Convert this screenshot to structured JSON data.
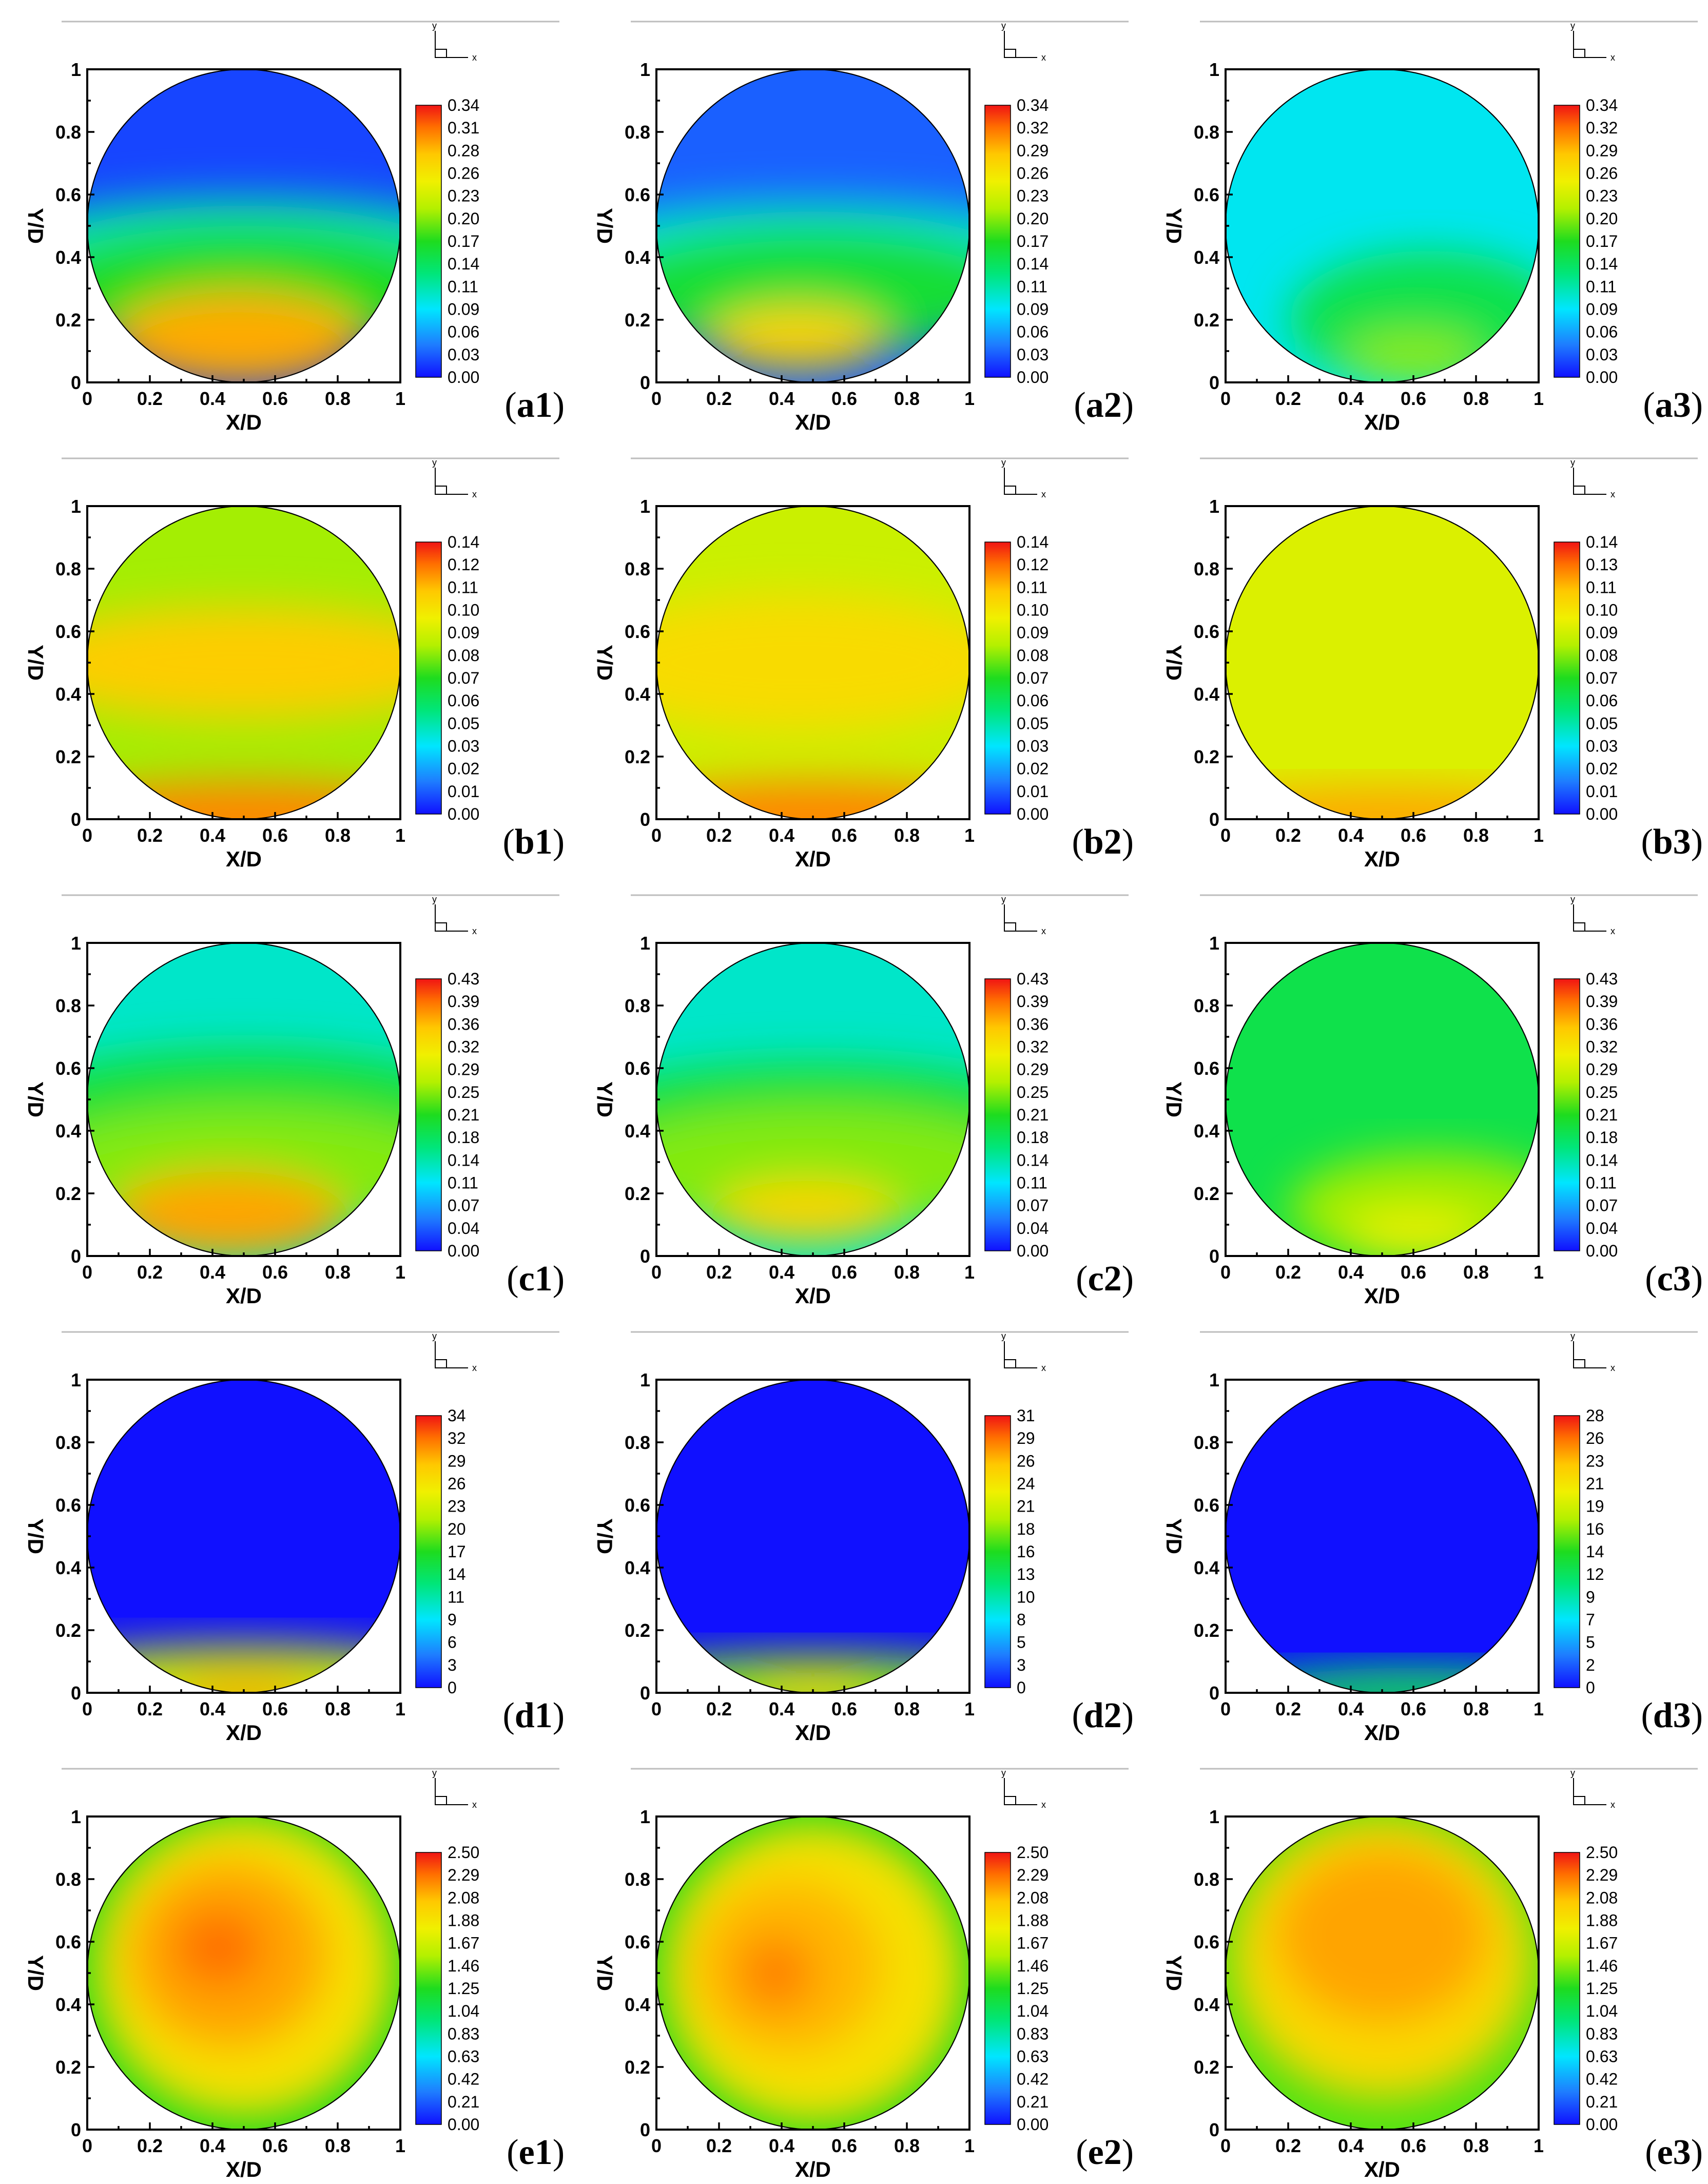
{
  "chart_data": [
    {
      "id": "a1",
      "type": "heatmap",
      "label": "a1",
      "xlabel": "X/D",
      "ylabel": "Y/D",
      "xlim": [
        0,
        1
      ],
      "ylim": [
        0,
        1
      ],
      "x_ticks": [
        "0",
        "0.2",
        "0.4",
        "0.6",
        "0.8",
        "1"
      ],
      "y_ticks": [
        "0",
        "0.2",
        "0.4",
        "0.6",
        "0.8",
        "1"
      ],
      "colorbar_levels": [
        "0.34",
        "0.31",
        "0.28",
        "0.26",
        "0.23",
        "0.20",
        "0.17",
        "0.14",
        "0.11",
        "0.09",
        "0.06",
        "0.03",
        "0.00"
      ],
      "colorbar_range": [
        0,
        0.34
      ],
      "background_level": 0.02,
      "blobs": [
        {
          "x": 0.5,
          "y": 0.46,
          "rx": 0.75,
          "ry": 0.13,
          "level": 0.11
        },
        {
          "x": 0.5,
          "y": 0.3,
          "rx": 0.7,
          "ry": 0.2,
          "level": 0.17
        },
        {
          "x": 0.48,
          "y": 0.14,
          "rx": 0.4,
          "ry": 0.15,
          "level": 0.29
        }
      ]
    },
    {
      "id": "a2",
      "type": "heatmap",
      "label": "a2",
      "xlabel": "X/D",
      "ylabel": "Y/D",
      "xlim": [
        0,
        1
      ],
      "ylim": [
        0,
        1
      ],
      "x_ticks": [
        "0",
        "0.2",
        "0.4",
        "0.6",
        "0.8",
        "1"
      ],
      "y_ticks": [
        "0",
        "0.2",
        "0.4",
        "0.6",
        "0.8",
        "1"
      ],
      "colorbar_levels": [
        "0.34",
        "0.32",
        "0.29",
        "0.26",
        "0.23",
        "0.20",
        "0.17",
        "0.14",
        "0.11",
        "0.09",
        "0.06",
        "0.03",
        "0.00"
      ],
      "colorbar_range": [
        0,
        0.34
      ],
      "background_level": 0.03,
      "blobs": [
        {
          "x": 0.5,
          "y": 0.46,
          "rx": 0.75,
          "ry": 0.12,
          "level": 0.1
        },
        {
          "x": 0.5,
          "y": 0.3,
          "rx": 0.7,
          "ry": 0.2,
          "level": 0.16
        },
        {
          "x": 0.45,
          "y": 0.14,
          "rx": 0.28,
          "ry": 0.1,
          "level": 0.27
        }
      ]
    },
    {
      "id": "a3",
      "type": "heatmap",
      "label": "a3",
      "xlabel": "X/D",
      "ylabel": "Y/D",
      "xlim": [
        0,
        1
      ],
      "ylim": [
        0,
        1
      ],
      "x_ticks": [
        "0",
        "0.2",
        "0.4",
        "0.6",
        "0.8",
        "1"
      ],
      "y_ticks": [
        "0",
        "0.2",
        "0.4",
        "0.6",
        "0.8",
        "1"
      ],
      "colorbar_levels": [
        "0.34",
        "0.32",
        "0.29",
        "0.26",
        "0.23",
        "0.20",
        "0.17",
        "0.14",
        "0.11",
        "0.09",
        "0.06",
        "0.03",
        "0.00"
      ],
      "colorbar_range": [
        0,
        0.34
      ],
      "background_level": 0.09,
      "blobs": [
        {
          "x": 0.65,
          "y": 0.2,
          "rx": 0.45,
          "ry": 0.22,
          "level": 0.15
        },
        {
          "x": 0.6,
          "y": 0.08,
          "rx": 0.22,
          "ry": 0.08,
          "level": 0.2
        }
      ]
    },
    {
      "id": "b1",
      "type": "heatmap",
      "label": "b1",
      "xlabel": "X/D",
      "ylabel": "Y/D",
      "xlim": [
        0,
        1
      ],
      "ylim": [
        0,
        1
      ],
      "x_ticks": [
        "0",
        "0.2",
        "0.4",
        "0.6",
        "0.8",
        "1"
      ],
      "y_ticks": [
        "0",
        "0.2",
        "0.4",
        "0.6",
        "0.8",
        "1"
      ],
      "colorbar_levels": [
        "0.14",
        "0.12",
        "0.11",
        "0.10",
        "0.09",
        "0.08",
        "0.07",
        "0.06",
        "0.05",
        "0.03",
        "0.02",
        "0.01",
        "0.00"
      ],
      "colorbar_range": [
        0,
        0.14
      ],
      "background_level": 0.085,
      "blobs": [
        {
          "x": 0.5,
          "y": 0.5,
          "rx": 0.75,
          "ry": 0.18,
          "level": 0.113
        },
        {
          "x": 0.5,
          "y": 0.0,
          "rx": 0.7,
          "ry": 0.12,
          "level": 0.125
        }
      ]
    },
    {
      "id": "b2",
      "type": "heatmap",
      "label": "b2",
      "xlabel": "X/D",
      "ylabel": "Y/D",
      "xlim": [
        0,
        1
      ],
      "ylim": [
        0,
        1
      ],
      "x_ticks": [
        "0",
        "0.2",
        "0.4",
        "0.6",
        "0.8",
        "1"
      ],
      "y_ticks": [
        "0",
        "0.2",
        "0.4",
        "0.6",
        "0.8",
        "1"
      ],
      "colorbar_levels": [
        "0.14",
        "0.12",
        "0.11",
        "0.10",
        "0.09",
        "0.08",
        "0.07",
        "0.06",
        "0.05",
        "0.03",
        "0.02",
        "0.01",
        "0.00"
      ],
      "colorbar_range": [
        0,
        0.14
      ],
      "background_level": 0.092,
      "blobs": [
        {
          "x": 0.45,
          "y": 0.5,
          "rx": 0.7,
          "ry": 0.22,
          "level": 0.108
        },
        {
          "x": 0.5,
          "y": 0.0,
          "rx": 0.7,
          "ry": 0.12,
          "level": 0.125
        }
      ]
    },
    {
      "id": "b3",
      "type": "heatmap",
      "label": "b3",
      "xlabel": "X/D",
      "ylabel": "Y/D",
      "xlim": [
        0,
        1
      ],
      "ylim": [
        0,
        1
      ],
      "x_ticks": [
        "0",
        "0.2",
        "0.4",
        "0.6",
        "0.8",
        "1"
      ],
      "y_ticks": [
        "0",
        "0.2",
        "0.4",
        "0.6",
        "0.8",
        "1"
      ],
      "colorbar_levels": [
        "0.14",
        "0.13",
        "0.11",
        "0.10",
        "0.09",
        "0.08",
        "0.07",
        "0.06",
        "0.05",
        "0.03",
        "0.02",
        "0.01",
        "0.00"
      ],
      "colorbar_range": [
        0,
        0.14
      ],
      "background_level": 0.096,
      "blobs": [
        {
          "x": 0.5,
          "y": 0.0,
          "rx": 0.7,
          "ry": 0.1,
          "level": 0.12
        }
      ]
    },
    {
      "id": "c1",
      "type": "heatmap",
      "label": "c1",
      "xlabel": "X/D",
      "ylabel": "Y/D",
      "xlim": [
        0,
        1
      ],
      "ylim": [
        0,
        1
      ],
      "x_ticks": [
        "0",
        "0.2",
        "0.4",
        "0.6",
        "0.8",
        "1"
      ],
      "y_ticks": [
        "0",
        "0.2",
        "0.4",
        "0.6",
        "0.8",
        "1"
      ],
      "colorbar_levels": [
        "0.43",
        "0.39",
        "0.36",
        "0.32",
        "0.29",
        "0.25",
        "0.21",
        "0.18",
        "0.14",
        "0.11",
        "0.07",
        "0.04",
        "0.00"
      ],
      "colorbar_range": [
        0,
        0.43
      ],
      "background_level": 0.13,
      "blobs": [
        {
          "x": 0.5,
          "y": 0.48,
          "rx": 0.75,
          "ry": 0.18,
          "level": 0.2
        },
        {
          "x": 0.5,
          "y": 0.28,
          "rx": 0.7,
          "ry": 0.2,
          "level": 0.25
        },
        {
          "x": 0.45,
          "y": 0.13,
          "rx": 0.38,
          "ry": 0.14,
          "level": 0.37
        }
      ]
    },
    {
      "id": "c2",
      "type": "heatmap",
      "label": "c2",
      "xlabel": "X/D",
      "ylabel": "Y/D",
      "xlim": [
        0,
        1
      ],
      "ylim": [
        0,
        1
      ],
      "x_ticks": [
        "0",
        "0.2",
        "0.4",
        "0.6",
        "0.8",
        "1"
      ],
      "y_ticks": [
        "0",
        "0.2",
        "0.4",
        "0.6",
        "0.8",
        "1"
      ],
      "colorbar_levels": [
        "0.43",
        "0.39",
        "0.36",
        "0.32",
        "0.29",
        "0.25",
        "0.21",
        "0.18",
        "0.14",
        "0.11",
        "0.07",
        "0.04",
        "0.00"
      ],
      "colorbar_range": [
        0,
        0.43
      ],
      "background_level": 0.13,
      "blobs": [
        {
          "x": 0.5,
          "y": 0.46,
          "rx": 0.75,
          "ry": 0.16,
          "level": 0.2
        },
        {
          "x": 0.5,
          "y": 0.28,
          "rx": 0.7,
          "ry": 0.2,
          "level": 0.25
        },
        {
          "x": 0.48,
          "y": 0.14,
          "rx": 0.3,
          "ry": 0.1,
          "level": 0.34
        }
      ]
    },
    {
      "id": "c3",
      "type": "heatmap",
      "label": "c3",
      "xlabel": "X/D",
      "ylabel": "Y/D",
      "xlim": [
        0,
        1
      ],
      "ylim": [
        0,
        1
      ],
      "x_ticks": [
        "0",
        "0.2",
        "0.4",
        "0.6",
        "0.8",
        "1"
      ],
      "y_ticks": [
        "0",
        "0.2",
        "0.4",
        "0.6",
        "0.8",
        "1"
      ],
      "colorbar_levels": [
        "0.43",
        "0.39",
        "0.36",
        "0.32",
        "0.29",
        "0.25",
        "0.21",
        "0.18",
        "0.14",
        "0.11",
        "0.07",
        "0.04",
        "0.00"
      ],
      "colorbar_range": [
        0,
        0.43
      ],
      "background_level": 0.19,
      "blobs": [
        {
          "x": 0.65,
          "y": 0.15,
          "rx": 0.45,
          "ry": 0.18,
          "level": 0.26
        },
        {
          "x": 0.6,
          "y": 0.07,
          "rx": 0.22,
          "ry": 0.07,
          "level": 0.31
        }
      ]
    },
    {
      "id": "d1",
      "type": "heatmap",
      "label": "d1",
      "xlabel": "X/D",
      "ylabel": "Y/D",
      "xlim": [
        0,
        1
      ],
      "ylim": [
        0,
        1
      ],
      "x_ticks": [
        "0",
        "0.2",
        "0.4",
        "0.6",
        "0.8",
        "1"
      ],
      "y_ticks": [
        "0",
        "0.2",
        "0.4",
        "0.6",
        "0.8",
        "1"
      ],
      "colorbar_levels": [
        "34",
        "32",
        "29",
        "26",
        "23",
        "20",
        "17",
        "14",
        "11",
        "9",
        "6",
        "3",
        "0"
      ],
      "colorbar_range": [
        0,
        34
      ],
      "background_level": 0,
      "blobs": [
        {
          "x": 0.5,
          "y": 0.0,
          "rx": 0.8,
          "ry": 0.15,
          "level": 22
        },
        {
          "x": 0.5,
          "y": 0.0,
          "rx": 0.25,
          "ry": 0.05,
          "level": 30
        }
      ]
    },
    {
      "id": "d2",
      "type": "heatmap",
      "label": "d2",
      "xlabel": "X/D",
      "ylabel": "Y/D",
      "xlim": [
        0,
        1
      ],
      "ylim": [
        0,
        1
      ],
      "x_ticks": [
        "0",
        "0.2",
        "0.4",
        "0.6",
        "0.8",
        "1"
      ],
      "y_ticks": [
        "0",
        "0.2",
        "0.4",
        "0.6",
        "0.8",
        "1"
      ],
      "colorbar_levels": [
        "31",
        "29",
        "26",
        "24",
        "21",
        "18",
        "16",
        "13",
        "10",
        "8",
        "5",
        "3",
        "0"
      ],
      "colorbar_range": [
        0,
        31
      ],
      "background_level": 0,
      "blobs": [
        {
          "x": 0.5,
          "y": 0.0,
          "rx": 0.75,
          "ry": 0.12,
          "level": 18
        },
        {
          "x": 0.5,
          "y": 0.0,
          "rx": 0.2,
          "ry": 0.04,
          "level": 25
        }
      ]
    },
    {
      "id": "d3",
      "type": "heatmap",
      "label": "d3",
      "xlabel": "X/D",
      "ylabel": "Y/D",
      "xlim": [
        0,
        1
      ],
      "ylim": [
        0,
        1
      ],
      "x_ticks": [
        "0",
        "0.2",
        "0.4",
        "0.6",
        "0.8",
        "1"
      ],
      "y_ticks": [
        "0",
        "0.2",
        "0.4",
        "0.6",
        "0.8",
        "1"
      ],
      "colorbar_levels": [
        "28",
        "26",
        "23",
        "21",
        "19",
        "16",
        "14",
        "12",
        "9",
        "7",
        "5",
        "2",
        "0"
      ],
      "colorbar_range": [
        0,
        28
      ],
      "background_level": 0,
      "blobs": [
        {
          "x": 0.6,
          "y": 0.0,
          "rx": 0.6,
          "ry": 0.08,
          "level": 12
        }
      ]
    },
    {
      "id": "e1",
      "type": "heatmap",
      "label": "e1",
      "xlabel": "X/D",
      "ylabel": "Y/D",
      "xlim": [
        0,
        1
      ],
      "ylim": [
        0,
        1
      ],
      "x_ticks": [
        "0",
        "0.2",
        "0.4",
        "0.6",
        "0.8",
        "1"
      ],
      "y_ticks": [
        "0",
        "0.2",
        "0.4",
        "0.6",
        "0.8",
        "1"
      ],
      "colorbar_levels": [
        "2.50",
        "2.29",
        "2.08",
        "1.88",
        "1.67",
        "1.46",
        "1.25",
        "1.04",
        "0.83",
        "0.63",
        "0.42",
        "0.21",
        "0.00"
      ],
      "colorbar_range": [
        0,
        2.5
      ],
      "background_level": 1.25,
      "blobs": [
        {
          "x": 0.5,
          "y": 0.52,
          "rx": 0.48,
          "ry": 0.48,
          "level": 1.9
        },
        {
          "x": 0.45,
          "y": 0.56,
          "rx": 0.32,
          "ry": 0.3,
          "level": 2.15
        },
        {
          "x": 0.42,
          "y": 0.58,
          "rx": 0.14,
          "ry": 0.12,
          "level": 2.3
        }
      ]
    },
    {
      "id": "e2",
      "type": "heatmap",
      "label": "e2",
      "xlabel": "X/D",
      "ylabel": "Y/D",
      "xlim": [
        0,
        1
      ],
      "ylim": [
        0,
        1
      ],
      "x_ticks": [
        "0",
        "0.2",
        "0.4",
        "0.6",
        "0.8",
        "1"
      ],
      "y_ticks": [
        "0",
        "0.2",
        "0.4",
        "0.6",
        "0.8",
        "1"
      ],
      "colorbar_levels": [
        "2.50",
        "2.29",
        "2.08",
        "1.88",
        "1.67",
        "1.46",
        "1.25",
        "1.04",
        "0.83",
        "0.63",
        "0.42",
        "0.21",
        "0.00"
      ],
      "colorbar_range": [
        0,
        2.5
      ],
      "background_level": 1.25,
      "blobs": [
        {
          "x": 0.5,
          "y": 0.5,
          "rx": 0.48,
          "ry": 0.48,
          "level": 1.9
        },
        {
          "x": 0.42,
          "y": 0.52,
          "rx": 0.3,
          "ry": 0.28,
          "level": 2.1
        },
        {
          "x": 0.38,
          "y": 0.5,
          "rx": 0.12,
          "ry": 0.12,
          "level": 2.25
        }
      ]
    },
    {
      "id": "e3",
      "type": "heatmap",
      "label": "e3",
      "xlabel": "X/D",
      "ylabel": "Y/D",
      "xlim": [
        0,
        1
      ],
      "ylim": [
        0,
        1
      ],
      "x_ticks": [
        "0",
        "0.2",
        "0.4",
        "0.6",
        "0.8",
        "1"
      ],
      "y_ticks": [
        "0",
        "0.2",
        "0.4",
        "0.6",
        "0.8",
        "1"
      ],
      "colorbar_levels": [
        "2.50",
        "2.29",
        "2.08",
        "1.88",
        "1.67",
        "1.46",
        "1.25",
        "1.04",
        "0.83",
        "0.63",
        "0.42",
        "0.21",
        "0.00"
      ],
      "colorbar_range": [
        0,
        2.5
      ],
      "background_level": 1.35,
      "blobs": [
        {
          "x": 0.5,
          "y": 0.55,
          "rx": 0.48,
          "ry": 0.45,
          "level": 1.95
        },
        {
          "x": 0.5,
          "y": 0.62,
          "rx": 0.34,
          "ry": 0.28,
          "level": 2.15
        }
      ]
    }
  ],
  "triad": {
    "x_label": "x",
    "y_label": "y"
  }
}
